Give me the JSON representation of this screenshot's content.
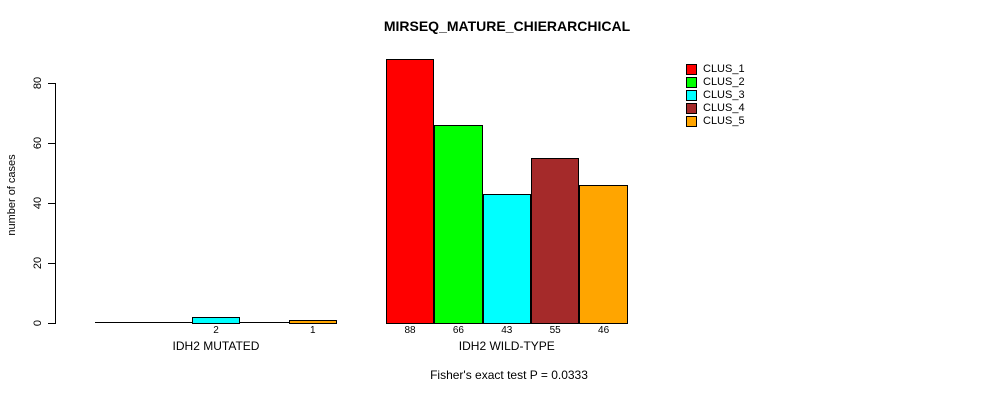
{
  "chart_data": {
    "type": "bar",
    "title": "MIRSEQ_MATURE_CHIERARCHICAL",
    "ylabel": "number of cases",
    "xlabel": "",
    "groups": [
      "IDH2 MUTATED",
      "IDH2 WILD-TYPE"
    ],
    "series": [
      {
        "name": "CLUS_1",
        "color": "#FF0000",
        "values": [
          0,
          88
        ]
      },
      {
        "name": "CLUS_2",
        "color": "#00FF00",
        "values": [
          0,
          66
        ]
      },
      {
        "name": "CLUS_3",
        "color": "#00FFFF",
        "values": [
          2,
          43
        ]
      },
      {
        "name": "CLUS_4",
        "color": "#A52A2A",
        "values": [
          0,
          55
        ]
      },
      {
        "name": "CLUS_5",
        "color": "#FFA500",
        "values": [
          1,
          46
        ]
      }
    ],
    "bar_labels": [
      [
        "",
        "",
        "2",
        "",
        "1"
      ],
      [
        "88",
        "66",
        "43",
        "55",
        "46"
      ]
    ],
    "yticks": [
      0,
      20,
      40,
      60,
      80
    ],
    "ylim": [
      0,
      88
    ],
    "grid": false,
    "legend_position": "top-right",
    "annotation": "Fisher's exact test P = 0.0333"
  }
}
